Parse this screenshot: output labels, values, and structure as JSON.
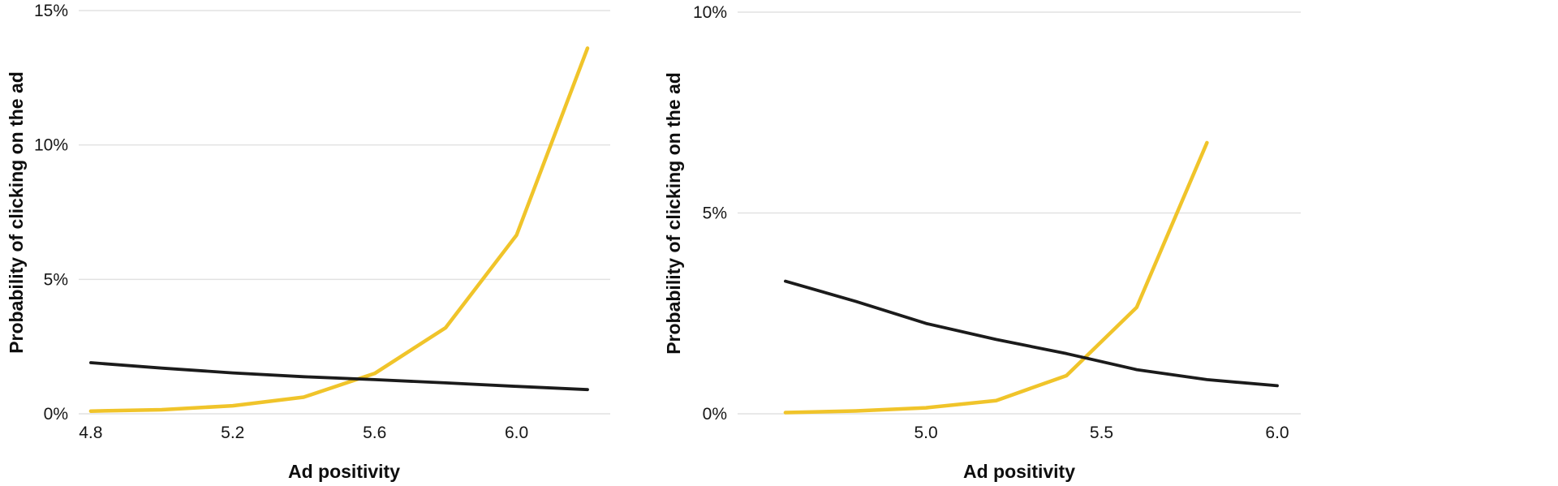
{
  "page": {
    "background": "#ffffff",
    "description": "Two side-by-side line charts of probability of clicking on an ad versus ad positivity"
  },
  "colors": {
    "yellow_series": "#F0C42A",
    "black_series": "#1b1b1b",
    "gridline": "#e2e2e2",
    "tick_text": "#161616",
    "axis_title_text": "#0e0e0e"
  },
  "chart_data": [
    {
      "type": "line",
      "title": "",
      "xlabel": "Ad positivity",
      "ylabel": "Probability of clicking on the ad",
      "x": [
        4.8,
        5.0,
        5.2,
        5.4,
        5.6,
        5.8,
        6.0,
        6.2
      ],
      "series": [
        {
          "name": "yellow-curve",
          "color": "#F0C42A",
          "stroke_width": 4.5,
          "values": [
            0.1,
            0.15,
            0.3,
            0.62,
            1.5,
            3.2,
            6.65,
            13.6
          ]
        },
        {
          "name": "black-curve",
          "color": "#1b1b1b",
          "stroke_width": 3.8,
          "values": [
            1.9,
            1.7,
            1.52,
            1.38,
            1.27,
            1.15,
            1.02,
            0.9
          ]
        }
      ],
      "xlim": [
        4.766,
        6.264
      ],
      "ylim": [
        0,
        15
      ],
      "xticks": [
        4.8,
        5.2,
        5.6,
        6.0
      ],
      "xtick_labels": [
        "4.8",
        "5.2",
        "5.6",
        "6.0"
      ],
      "yticks": [
        0,
        5,
        10,
        15
      ],
      "ytick_labels": [
        "0%",
        "5%",
        "10%",
        "15%"
      ],
      "grid": "horizontal",
      "legend": "none"
    },
    {
      "type": "line",
      "title": "",
      "xlabel": "Ad positivity",
      "ylabel": "Probability of clicking on the ad",
      "x": [
        4.6,
        4.8,
        5.0,
        5.2,
        5.4,
        5.6,
        5.8,
        6.0
      ],
      "series": [
        {
          "name": "yellow-curve",
          "color": "#F0C42A",
          "stroke_width": 4.5,
          "values": [
            0.03,
            0.07,
            0.15,
            0.33,
            0.95,
            2.65,
            6.75,
            null
          ]
        },
        {
          "name": "black-curve",
          "color": "#1b1b1b",
          "stroke_width": 3.8,
          "values": [
            3.3,
            2.8,
            2.25,
            1.85,
            1.5,
            1.1,
            0.85,
            0.7
          ]
        }
      ],
      "xlim": [
        4.464,
        6.067
      ],
      "ylim": [
        0,
        10
      ],
      "xticks": [
        5.0,
        5.5,
        6.0
      ],
      "xtick_labels": [
        "5.0",
        "5.5",
        "6.0"
      ],
      "yticks": [
        0,
        5,
        10
      ],
      "ytick_labels": [
        "0%",
        "5%",
        "10%"
      ],
      "grid": "horizontal",
      "legend": "none"
    }
  ]
}
